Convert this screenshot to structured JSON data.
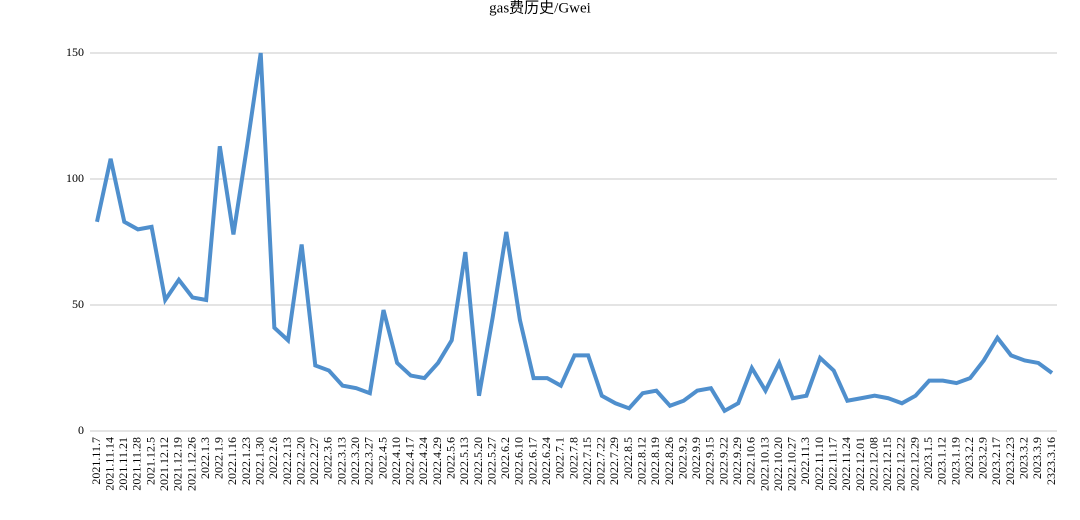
{
  "chart_data": {
    "type": "line",
    "title": "gas费历史/Gwei",
    "categories": [
      "2021.11.7",
      "2021.11.14",
      "2021.11.21",
      "2021.11.28",
      "2021.12.5",
      "2021.12.12",
      "2021.12.19",
      "2021.12.26",
      "2022.1.3",
      "2022.1.9",
      "2022.1.16",
      "2022.1.23",
      "2022.1.30",
      "2022.2.6",
      "2022.2.13",
      "2022.2.20",
      "2022.2.27",
      "2022.3.6",
      "2022.3.13",
      "2022.3.20",
      "2022.3.27",
      "2022.4.5",
      "2022.4.10",
      "2022.4.17",
      "2022.4.24",
      "2022.4.29",
      "2022.5.6",
      "2022.5.13",
      "2022.5.20",
      "2022.5.27",
      "2022.6.2",
      "2022.6.10",
      "2022.6.17",
      "2022.6.24",
      "2022.7.1",
      "2022.7.8",
      "2022.7.15",
      "2022.7.22",
      "2022.7.29",
      "2022.8.5",
      "2022.8.12",
      "2022.8.19",
      "2022.8.26",
      "2022.9.2",
      "2022.9.9",
      "2022.9.15",
      "2022.9.22",
      "2022.9.29",
      "2022.10.6",
      "2022.10.13",
      "2022.10.20",
      "2022.10.27",
      "2022.11.3",
      "2022.11.10",
      "2022.11.17",
      "2022.11.24",
      "2022.12.01",
      "2022.12.08",
      "2022.12.15",
      "2022.12.22",
      "2022.12.29",
      "2023.1.5",
      "2023.1.12",
      "2023.1.19",
      "2023.2.2",
      "2023.2.9",
      "2023.2.17",
      "2023.2.23",
      "2023.3.2",
      "2023.3.9",
      "2323.3.16"
    ],
    "values": [
      83,
      108,
      83,
      80,
      81,
      52,
      60,
      53,
      52,
      113,
      78,
      113,
      150,
      41,
      36,
      74,
      26,
      24,
      18,
      17,
      15,
      48,
      27,
      22,
      21,
      27,
      36,
      71,
      14,
      45,
      79,
      44,
      21,
      21,
      18,
      30,
      30,
      14,
      11,
      9,
      15,
      16,
      10,
      12,
      16,
      17,
      8,
      11,
      25,
      16,
      27,
      13,
      14,
      29,
      24,
      12,
      13,
      14,
      13,
      11,
      14,
      20,
      20,
      19,
      21,
      28,
      37,
      30,
      28,
      27,
      23
    ],
    "color": "#4f8fcd",
    "ylim": [
      0,
      150
    ],
    "yticks": [
      0,
      50,
      100,
      150
    ],
    "grid": true
  }
}
